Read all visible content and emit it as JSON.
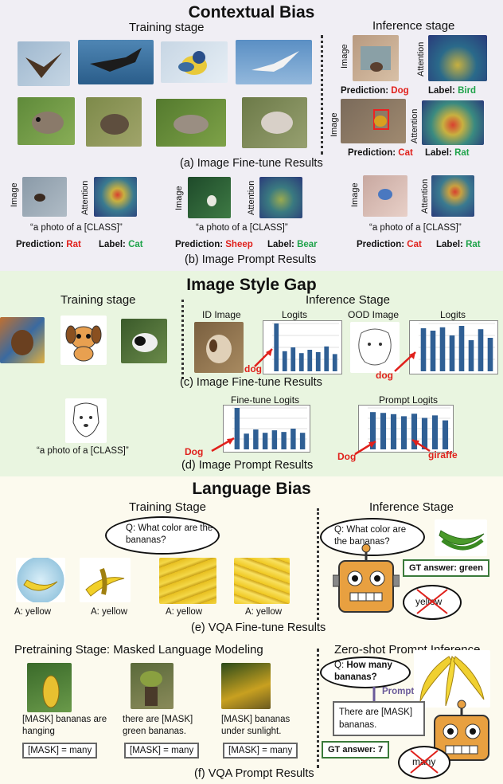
{
  "contextual_bias": {
    "title": "Contextual Bias",
    "training_stage": "Training stage",
    "inference_stage": "Inference stage",
    "labels": {
      "image": "Image",
      "attention": "Attention"
    },
    "pred1": {
      "pred_label": "Prediction:",
      "pred_value": "Dog",
      "label_label": "Label:",
      "label_value": "Bird"
    },
    "pred2": {
      "pred_label": "Prediction:",
      "pred_value": "Cat",
      "label_label": "Label:",
      "label_value": "Rat"
    },
    "caption_a": "(a) Image Fine-tune Results",
    "prompt_text": "“a photo of a [CLASS]”",
    "prompt_items": [
      {
        "pred_label": "Prediction:",
        "pred_value": "Rat",
        "label_label": "Label:",
        "label_value": "Cat"
      },
      {
        "pred_label": "Prediction:",
        "pred_value": "Sheep",
        "label_label": "Label:",
        "label_value": "Bear"
      },
      {
        "pred_label": "Prediction:",
        "pred_value": "Cat",
        "label_label": "Label:",
        "label_value": "Rat"
      }
    ],
    "caption_b": "(b) Image Prompt Results"
  },
  "style_gap": {
    "title": "Image Style Gap",
    "training_stage": "Training stage",
    "inference_stage": "Inference Stage",
    "id_image": "ID Image",
    "ood_image": "OOD Image",
    "logits": "Logits",
    "dog": "dog",
    "caption_c": "(c) Image Fine-tune Results",
    "prompt_text": "“a photo of a [CLASS]”",
    "finetune_logits": "Fine-tune Logits",
    "prompt_logits": "Prompt Logits",
    "dog_cap": "Dog",
    "giraffe": "giraffe",
    "caption_d": "(d) Image Prompt Results"
  },
  "language_bias": {
    "title": "Language Bias",
    "training_stage": "Training Stage",
    "inference_stage": "Inference Stage",
    "question": "Q: What color are the bananas?",
    "answers": [
      "A: yellow",
      "A: yellow",
      "A: yellow",
      "A: yellow"
    ],
    "gt_answer": "GT answer: green",
    "robot_answer": "yellow",
    "caption_e": "(e) VQA Fine-tune Results",
    "pretraining_stage": "Pretraining Stage: Masked Language Modeling",
    "zero_shot": "Zero-shot Prompt Inference",
    "mlm_sentences": [
      "[MASK] bananas are hanging",
      "there are [MASK] green bananas.",
      "[MASK] bananas under sunlight."
    ],
    "mask_answers": [
      "[MASK] = many",
      "[MASK] = many",
      "[MASK] = many"
    ],
    "q_prefix": "Q:",
    "q_bold": "How many bananas?",
    "prompt_label": "Prompt",
    "prompt_sentence": "There are [MASK] bananas.",
    "gt_answer2": "GT answer: 7",
    "robot_answer2": "many",
    "caption_f": "(f) VQA Prompt Results"
  },
  "chart_data": [
    {
      "type": "bar",
      "title": "Logits",
      "values": [
        1.0,
        0.42,
        0.5,
        0.38,
        0.45,
        0.4,
        0.52,
        0.36
      ],
      "highlight_index": 0
    },
    {
      "type": "bar",
      "title": "Logits",
      "values": [
        0.9,
        0.85,
        0.92,
        0.75,
        0.95,
        0.65,
        0.88,
        0.7
      ],
      "highlight_index": 0
    },
    {
      "type": "bar",
      "title": "Fine-tune Logits",
      "values": [
        1.0,
        0.38,
        0.48,
        0.4,
        0.46,
        0.42,
        0.5,
        0.4
      ],
      "highlight_index": 0
    },
    {
      "type": "bar",
      "title": "Prompt Logits",
      "values": [
        0.9,
        0.88,
        0.85,
        0.8,
        0.86,
        0.76,
        0.82,
        0.7
      ],
      "highlight_index": 0
    }
  ]
}
